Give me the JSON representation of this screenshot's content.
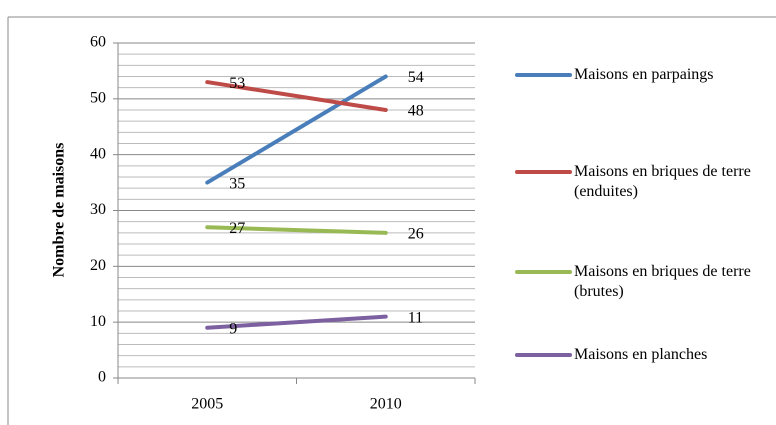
{
  "chart_data": {
    "type": "line",
    "y_label": "Nombre de maisons",
    "categories": [
      "2005",
      "2010"
    ],
    "series": [
      {
        "name": "Maisons en parpaings",
        "color": "#4a7ebb",
        "values": [
          35,
          54
        ]
      },
      {
        "name": "Maisons en briques de terre (enduites)",
        "color": "#be4b48",
        "values": [
          53,
          48
        ]
      },
      {
        "name": "Maisons en briques de terre (brutes)",
        "color": "#98b954",
        "values": [
          27,
          26
        ]
      },
      {
        "name": "Maisons en planches",
        "color": "#7d60a0",
        "values": [
          9,
          11
        ]
      }
    ],
    "ylim": [
      0,
      60
    ],
    "yticks": [
      0,
      10,
      20,
      30,
      40,
      50,
      60
    ],
    "minor_gridlines": [
      2,
      4,
      6,
      8,
      12,
      14,
      16,
      18,
      22,
      24,
      26,
      28,
      32,
      34,
      36,
      38,
      42,
      44,
      46,
      48,
      52,
      54,
      56,
      58
    ],
    "grid": true,
    "legend": "right"
  }
}
